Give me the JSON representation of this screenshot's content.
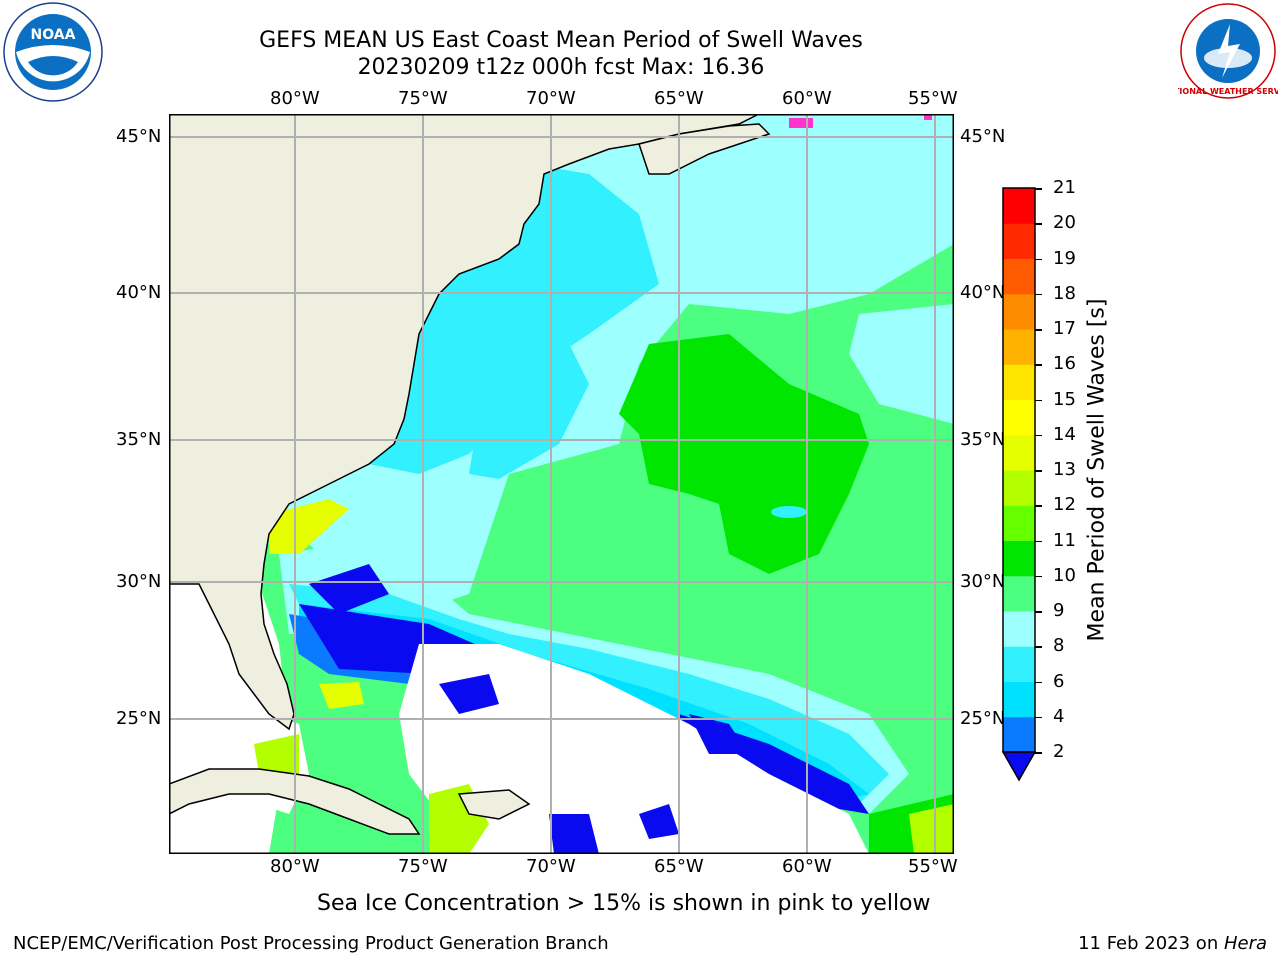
{
  "header": {
    "title_line1": "GEFS MEAN US East Coast Mean Period of Swell Waves",
    "title_line2": "20230209 t12z 000h fcst   Max: 16.36",
    "left_logo_text": "NOAA",
    "right_logo_ring": "NATIONAL WEATHER SERVICE"
  },
  "map": {
    "lon_labels": [
      "80°W",
      "75°W",
      "70°W",
      "65°W",
      "60°W",
      "55°W"
    ],
    "lat_labels": [
      "45°N",
      "40°N",
      "35°N",
      "30°N",
      "25°N"
    ]
  },
  "colorbar": {
    "label": "Mean Period of Swell Waves [s]",
    "ticks": [
      "2",
      "4",
      "6",
      "8",
      "9",
      "10",
      "11",
      "12",
      "13",
      "14",
      "15",
      "16",
      "17",
      "18",
      "19",
      "20",
      "21"
    ],
    "colors": [
      "#0a0af0",
      "#0a7bff",
      "#00e1ff",
      "#33f0ff",
      "#9effff",
      "#4dff80",
      "#00e600",
      "#66ff00",
      "#b3ff00",
      "#e6ff00",
      "#ffff00",
      "#ffe600",
      "#ffb300",
      "#ff8c00",
      "#ff5a00",
      "#ff2a00",
      "#ff0000"
    ]
  },
  "footer": {
    "note": "Sea Ice Concentration > 15% is shown in pink to yellow",
    "org": "NCEP/EMC/Verification Post Processing Product Generation Branch",
    "date_prefix": "11 Feb 2023 on ",
    "host": "Hera"
  }
}
